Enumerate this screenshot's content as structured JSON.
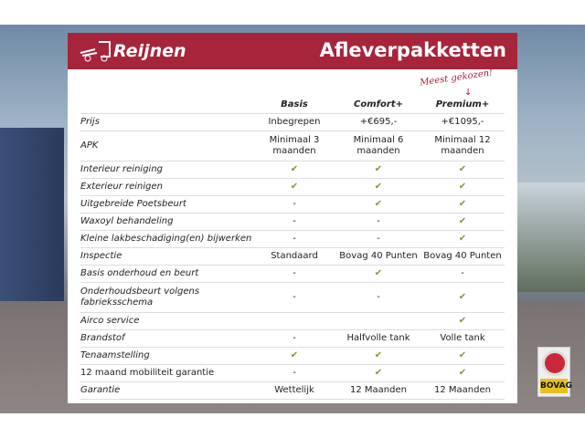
{
  "header": {
    "logo_text": "Reijnen",
    "title": "Afleverpakketten"
  },
  "annotation": "Meest gekozen!",
  "columns": [
    "Basis",
    "Comfort+",
    "Premium+"
  ],
  "rows": [
    {
      "label": "Prijs",
      "values": [
        "Inbegrepen",
        "+€695,-",
        "+€1095,-"
      ]
    },
    {
      "label": "APK",
      "values": [
        "Minimaal 3 maanden",
        "Minimaal 6 maanden",
        "Minimaal 12 maanden"
      ],
      "tall": true
    },
    {
      "label": "Interieur reiniging",
      "values": [
        "✔",
        "✔",
        "✔"
      ]
    },
    {
      "label": "Exterieur reinigen",
      "values": [
        "✔",
        "✔",
        "✔"
      ]
    },
    {
      "label": "Uitgebreide Poetsbeurt",
      "values": [
        "-",
        "✔",
        "✔"
      ]
    },
    {
      "label": "Waxoyl behandeling",
      "values": [
        "-",
        "-",
        "✔"
      ]
    },
    {
      "label": "Kleine lakbeschadiging(en) bijwerken",
      "values": [
        "-",
        "-",
        "✔"
      ]
    },
    {
      "label": "Inspectie",
      "values": [
        "Standaard",
        "Bovag 40 Punten",
        "Bovag 40 Punten"
      ]
    },
    {
      "label": "Basis onderhoud en beurt",
      "values": [
        "-",
        "✔",
        "-"
      ]
    },
    {
      "label": "Onderhoudsbeurt volgens fabrieksschema",
      "values": [
        "-",
        "-",
        "✔"
      ],
      "tall": true
    },
    {
      "label": "Airco service",
      "values": [
        "",
        "",
        "✔"
      ]
    },
    {
      "label": "Brandstof",
      "values": [
        "-",
        "Halfvolle tank",
        "Volle tank"
      ]
    },
    {
      "label": "Tenaamstelling",
      "values": [
        "✔",
        "✔",
        "✔"
      ]
    },
    {
      "label": "12 maand mobiliteit garantie",
      "values": [
        "-",
        "✔",
        "✔"
      ],
      "upright": true
    },
    {
      "label": "Garantie",
      "values": [
        "Wettelijk",
        "12 Maanden",
        "12 Maanden"
      ]
    }
  ],
  "badge": {
    "text": "BOVAG"
  },
  "colors": {
    "brand": "#a6253a",
    "check": "#7b9a3a"
  }
}
